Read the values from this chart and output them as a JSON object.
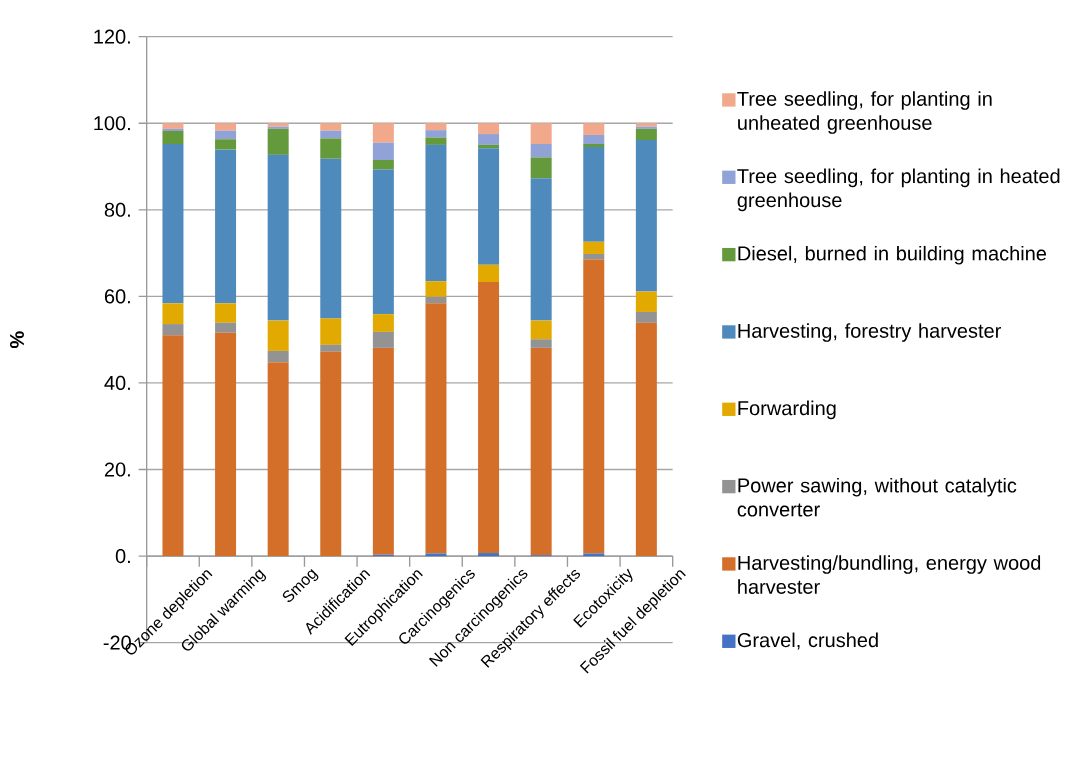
{
  "chart_data": {
    "type": "bar",
    "stacked": true,
    "ylabel": "%",
    "categories": [
      "Ozone depletion",
      "Global warming",
      "Smog",
      "Acidification",
      "Eutrophication",
      "Carcinogenics",
      "Non carcinogenics",
      "Respiratory effects",
      "Ecotoxicity",
      "Fossil fuel depletion"
    ],
    "series": [
      {
        "name": "Gravel, crushed",
        "color": "#4472c4",
        "values": [
          0,
          0,
          0,
          0,
          0.3,
          0.6,
          0.7,
          0.2,
          0.6,
          0
        ]
      },
      {
        "name": "Harvesting/bundling, energy wood harvester",
        "color": "#d46f2a",
        "values": [
          51.0,
          51.6,
          44.8,
          47.2,
          47.8,
          57.8,
          62.6,
          47.9,
          67.9,
          53.9
        ]
      },
      {
        "name": "Power sawing, without catalytic converter",
        "color": "#939393",
        "values": [
          2.6,
          2.3,
          2.6,
          1.6,
          3.7,
          1.5,
          0,
          2.0,
          1.3,
          2.5
        ]
      },
      {
        "name": "Forwarding",
        "color": "#e2aa00",
        "values": [
          4.8,
          4.5,
          7.0,
          6.1,
          4.1,
          3.6,
          4.0,
          4.3,
          2.8,
          4.7
        ]
      },
      {
        "name": "Harvesting, forestry harvester",
        "color": "#4f8abd",
        "values": [
          36.8,
          35.5,
          38.3,
          36.9,
          33.4,
          31.5,
          26.9,
          32.9,
          21.9,
          35.0
        ]
      },
      {
        "name": "Diesel, burned in building machine",
        "color": "#64993c",
        "values": [
          3.0,
          2.4,
          6.0,
          4.7,
          2.2,
          1.7,
          0.8,
          4.8,
          0.7,
          2.6
        ]
      },
      {
        "name": "Tree seedling, for planting in heated greenhouse",
        "color": "#91a3d6",
        "values": [
          0.5,
          2.0,
          0.5,
          1.8,
          4.0,
          1.7,
          2.5,
          3.1,
          2.1,
          0.5
        ]
      },
      {
        "name": "Tree seedling, for planting in unheated greenhouse",
        "color": "#f2a88a",
        "values": [
          1.3,
          1.7,
          0.8,
          1.7,
          4.5,
          1.6,
          2.5,
          4.8,
          2.7,
          0.8
        ]
      }
    ],
    "ylim": [
      -20,
      120
    ],
    "yticks": [
      {
        "value": -20,
        "label": "-20"
      },
      {
        "value": 0,
        "label": "0."
      },
      {
        "value": 20,
        "label": "20."
      },
      {
        "value": 40,
        "label": "40."
      },
      {
        "value": 60,
        "label": "60."
      },
      {
        "value": 80,
        "label": "80."
      },
      {
        "value": 100,
        "label": "100."
      },
      {
        "value": 120,
        "label": "120."
      }
    ],
    "grid": "y",
    "legend": "right"
  }
}
